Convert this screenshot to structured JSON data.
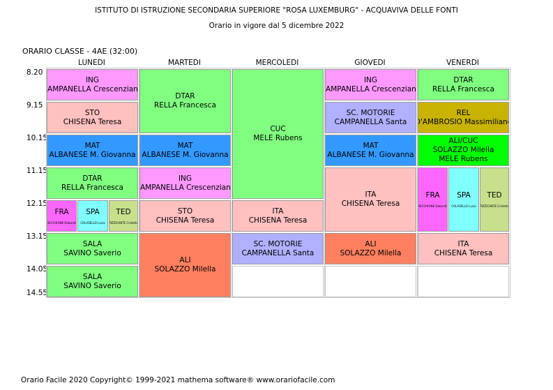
{
  "header": {
    "school": "ISTITUTO DI ISTRUZIONE SECONDARIA SUPERIORE \"ROSA LUXEMBURG\" - ACQUAVIVA DELLE FONTI",
    "validity": "Orario in vigore dal 5 dicembre 2022"
  },
  "class_label": "ORARIO CLASSE   -  4AE  (32:00)",
  "days": [
    "LUNEDI",
    "MARTEDI",
    "MERCOLEDI",
    "GIOVEDI",
    "VENERDI"
  ],
  "times": [
    "8.20",
    "9.15",
    "10.15",
    "11.15",
    "12.15",
    "13.15",
    "14.05",
    "14.55"
  ],
  "colors": {
    "ING": "#ff99ff",
    "STO": "#ffc0c0",
    "MAT": "#3399ff",
    "DTAR": "#80ff80",
    "CUC": "#80ff80",
    "SC_MOTORIE": "#b0b0ff",
    "ITA": "#ffc0c0",
    "ALI": "#ff8060",
    "SALA": "#80ff80",
    "REL": "#c8b400",
    "ALI_CUC": "#00ff00",
    "FRA": "#ff66ff",
    "SPA": "#80ffff",
    "TED": "#c8e08c"
  },
  "lessons": {
    "mon_1": {
      "subject": "ING",
      "teacher": "CAMPANELLA Crescenziana"
    },
    "mon_2": {
      "subject": "STO",
      "teacher": "CHISENA Teresa"
    },
    "mon_3": {
      "subject": "MAT",
      "teacher": "ALBANESE M. Giovanna"
    },
    "mon_4": {
      "subject": "DTAR",
      "teacher": "RELLA Francesca"
    },
    "mon_5_fra": {
      "subject": "FRA",
      "teacher": "RECCHIONE Deborah"
    },
    "mon_5_spa": {
      "subject": "SPA",
      "teacher": "COLASELLO Lucia"
    },
    "mon_5_ted": {
      "subject": "TED",
      "teacher": "PIZZICANTE Cristella"
    },
    "mon_6": {
      "subject": "SALA",
      "teacher": "SAVINO Saverio"
    },
    "mon_7": {
      "subject": "SALA",
      "teacher": "SAVINO Saverio"
    },
    "tue_12": {
      "subject": "DTAR",
      "teacher": "RELLA Francesca"
    },
    "tue_3": {
      "subject": "MAT",
      "teacher": "ALBANESE M. Giovanna"
    },
    "tue_4": {
      "subject": "ING",
      "teacher": "CAMPANELLA Crescenziana"
    },
    "tue_5": {
      "subject": "STO",
      "teacher": "CHISENA Teresa"
    },
    "tue_67": {
      "subject": "ALI",
      "teacher": "SOLAZZO Milella"
    },
    "wed_14": {
      "subject": "CUC",
      "teacher": "MELE Rubens"
    },
    "wed_5": {
      "subject": "ITA",
      "teacher": "CHISENA Teresa"
    },
    "wed_6": {
      "subject": "SC. MOTORIE",
      "teacher": "CAMPANELLA Santa"
    },
    "thu_1": {
      "subject": "ING",
      "teacher": "CAMPANELLA Crescenziana"
    },
    "thu_2": {
      "subject": "SC. MOTORIE",
      "teacher": "CAMPANELLA Santa"
    },
    "thu_3": {
      "subject": "MAT",
      "teacher": "ALBANESE M. Giovanna"
    },
    "thu_45": {
      "subject": "ITA",
      "teacher": "CHISENA Teresa"
    },
    "thu_6": {
      "subject": "ALI",
      "teacher": "SOLAZZO Milella"
    },
    "fri_1": {
      "subject": "DTAR",
      "teacher": "RELLA Francesca"
    },
    "fri_2": {
      "subject": "REL",
      "teacher": "D'AMBROSIO Massimiliano"
    },
    "fri_3": {
      "subject": "ALI/CUC",
      "teacher": "SOLAZZO Milella",
      "teacher2": "MELE Rubens"
    },
    "fri_45_fra": {
      "subject": "FRA",
      "teacher": "RECCHIONE Deborah"
    },
    "fri_45_spa": {
      "subject": "SPA",
      "teacher": "COLASELLO Lucia"
    },
    "fri_45_ted": {
      "subject": "TED",
      "teacher": "PIZZICANTE Cristella"
    },
    "fri_6": {
      "subject": "ITA",
      "teacher": "CHISENA Teresa"
    }
  },
  "footer": "Orario Facile 2020  Copyright© 1999-2021 mathema software®     www.orariofacile.com"
}
